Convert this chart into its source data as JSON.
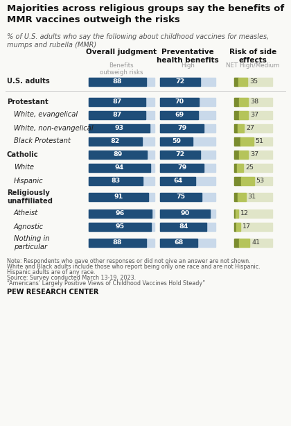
{
  "title": "Majorities across religious groups say the benefits of\nMMR vaccines outweigh the risks",
  "subtitle": "% of U.S. adults who say the following about childhood vaccines for measles,\nmumps and rubella (MMR)",
  "col_headers": [
    "Overall judgment",
    "Preventative\nhealth benefits",
    "Risk of side\neffects"
  ],
  "col_subheaders": [
    "Benefits\noutweigh risks",
    "High",
    "NET High/Medium"
  ],
  "note_lines": [
    "Note: Respondents who gave other responses or did not give an answer are not shown.",
    "White and Black adults include those who report being only one race and are not Hispanic.",
    "Hispanic adults are of any race.",
    "Source: Survey conducted March 13-19, 2023.",
    "“Americans’ Largely Positive Views of Childhood Vaccines Hold Steady”"
  ],
  "source_label": "PEW RESEARCH CENTER",
  "rows": [
    {
      "label": "U.S. adults",
      "indent": 0,
      "bold": true,
      "italic": false,
      "col1": 88,
      "col2": 72,
      "col3": 35,
      "sep_after": true
    },
    {
      "label": "Protestant",
      "indent": 0,
      "bold": true,
      "italic": false,
      "col1": 87,
      "col2": 70,
      "col3": 38,
      "sep_after": false
    },
    {
      "label": "White, evangelical",
      "indent": 1,
      "bold": false,
      "italic": true,
      "col1": 87,
      "col2": 69,
      "col3": 37,
      "sep_after": false
    },
    {
      "label": "White, non-evangelical",
      "indent": 1,
      "bold": false,
      "italic": true,
      "col1": 93,
      "col2": 79,
      "col3": 27,
      "sep_after": false
    },
    {
      "label": "Black Protestant",
      "indent": 1,
      "bold": false,
      "italic": true,
      "col1": 82,
      "col2": 59,
      "col3": 51,
      "sep_after": false
    },
    {
      "label": "Catholic",
      "indent": 0,
      "bold": true,
      "italic": false,
      "col1": 89,
      "col2": 72,
      "col3": 37,
      "sep_after": false
    },
    {
      "label": "White",
      "indent": 1,
      "bold": false,
      "italic": true,
      "col1": 94,
      "col2": 79,
      "col3": 25,
      "sep_after": false
    },
    {
      "label": "Hispanic",
      "indent": 1,
      "bold": false,
      "italic": true,
      "col1": 83,
      "col2": 64,
      "col3": 53,
      "sep_after": false
    },
    {
      "label": "Religiously\nunaffiliated",
      "indent": 0,
      "bold": true,
      "italic": false,
      "col1": 91,
      "col2": 75,
      "col3": 31,
      "sep_after": false
    },
    {
      "label": "Atheist",
      "indent": 1,
      "bold": false,
      "italic": true,
      "col1": 96,
      "col2": 90,
      "col3": 12,
      "sep_after": false
    },
    {
      "label": "Agnostic",
      "indent": 1,
      "bold": false,
      "italic": true,
      "col1": 95,
      "col2": 84,
      "col3": 17,
      "sep_after": false
    },
    {
      "label": "Nothing in\nparticular",
      "indent": 1,
      "bold": false,
      "italic": true,
      "col1": 88,
      "col2": 68,
      "col3": 41,
      "sep_after": false
    }
  ],
  "blue_bar": "#1f4e79",
  "blue_bg": "#c9d9ea",
  "green_dark": "#7a8c2e",
  "green_light": "#b5c45a",
  "green_bg": "#e0e5c8",
  "background": "#f9f9f6",
  "label_color": "#222222",
  "subheader_color": "#999999",
  "note_color": "#555555"
}
